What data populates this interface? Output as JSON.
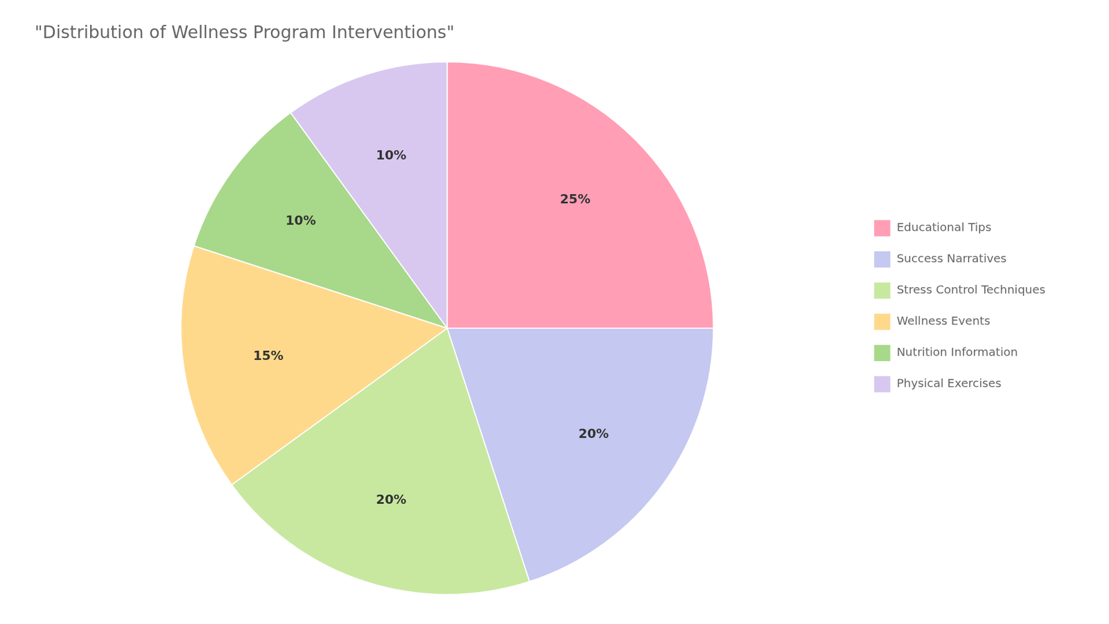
{
  "chart_data": {
    "type": "pie",
    "title": "\"Distribution of Wellness Program Interventions\"",
    "categories": [
      "Educational Tips",
      "Success Narratives",
      "Stress Control Techniques",
      "Wellness Events",
      "Nutrition Information",
      "Physical Exercises"
    ],
    "values": [
      25,
      20,
      20,
      15,
      10,
      10
    ],
    "value_labels": [
      "25%",
      "20%",
      "20%",
      "15%",
      "10%",
      "10%"
    ],
    "colors": [
      "#FF9EB5",
      "#C5C8F0",
      "#C8E8A0",
      "#FFD98B",
      "#A8D88A",
      "#D8C8F0"
    ],
    "legend": "right",
    "data_labels": true
  }
}
